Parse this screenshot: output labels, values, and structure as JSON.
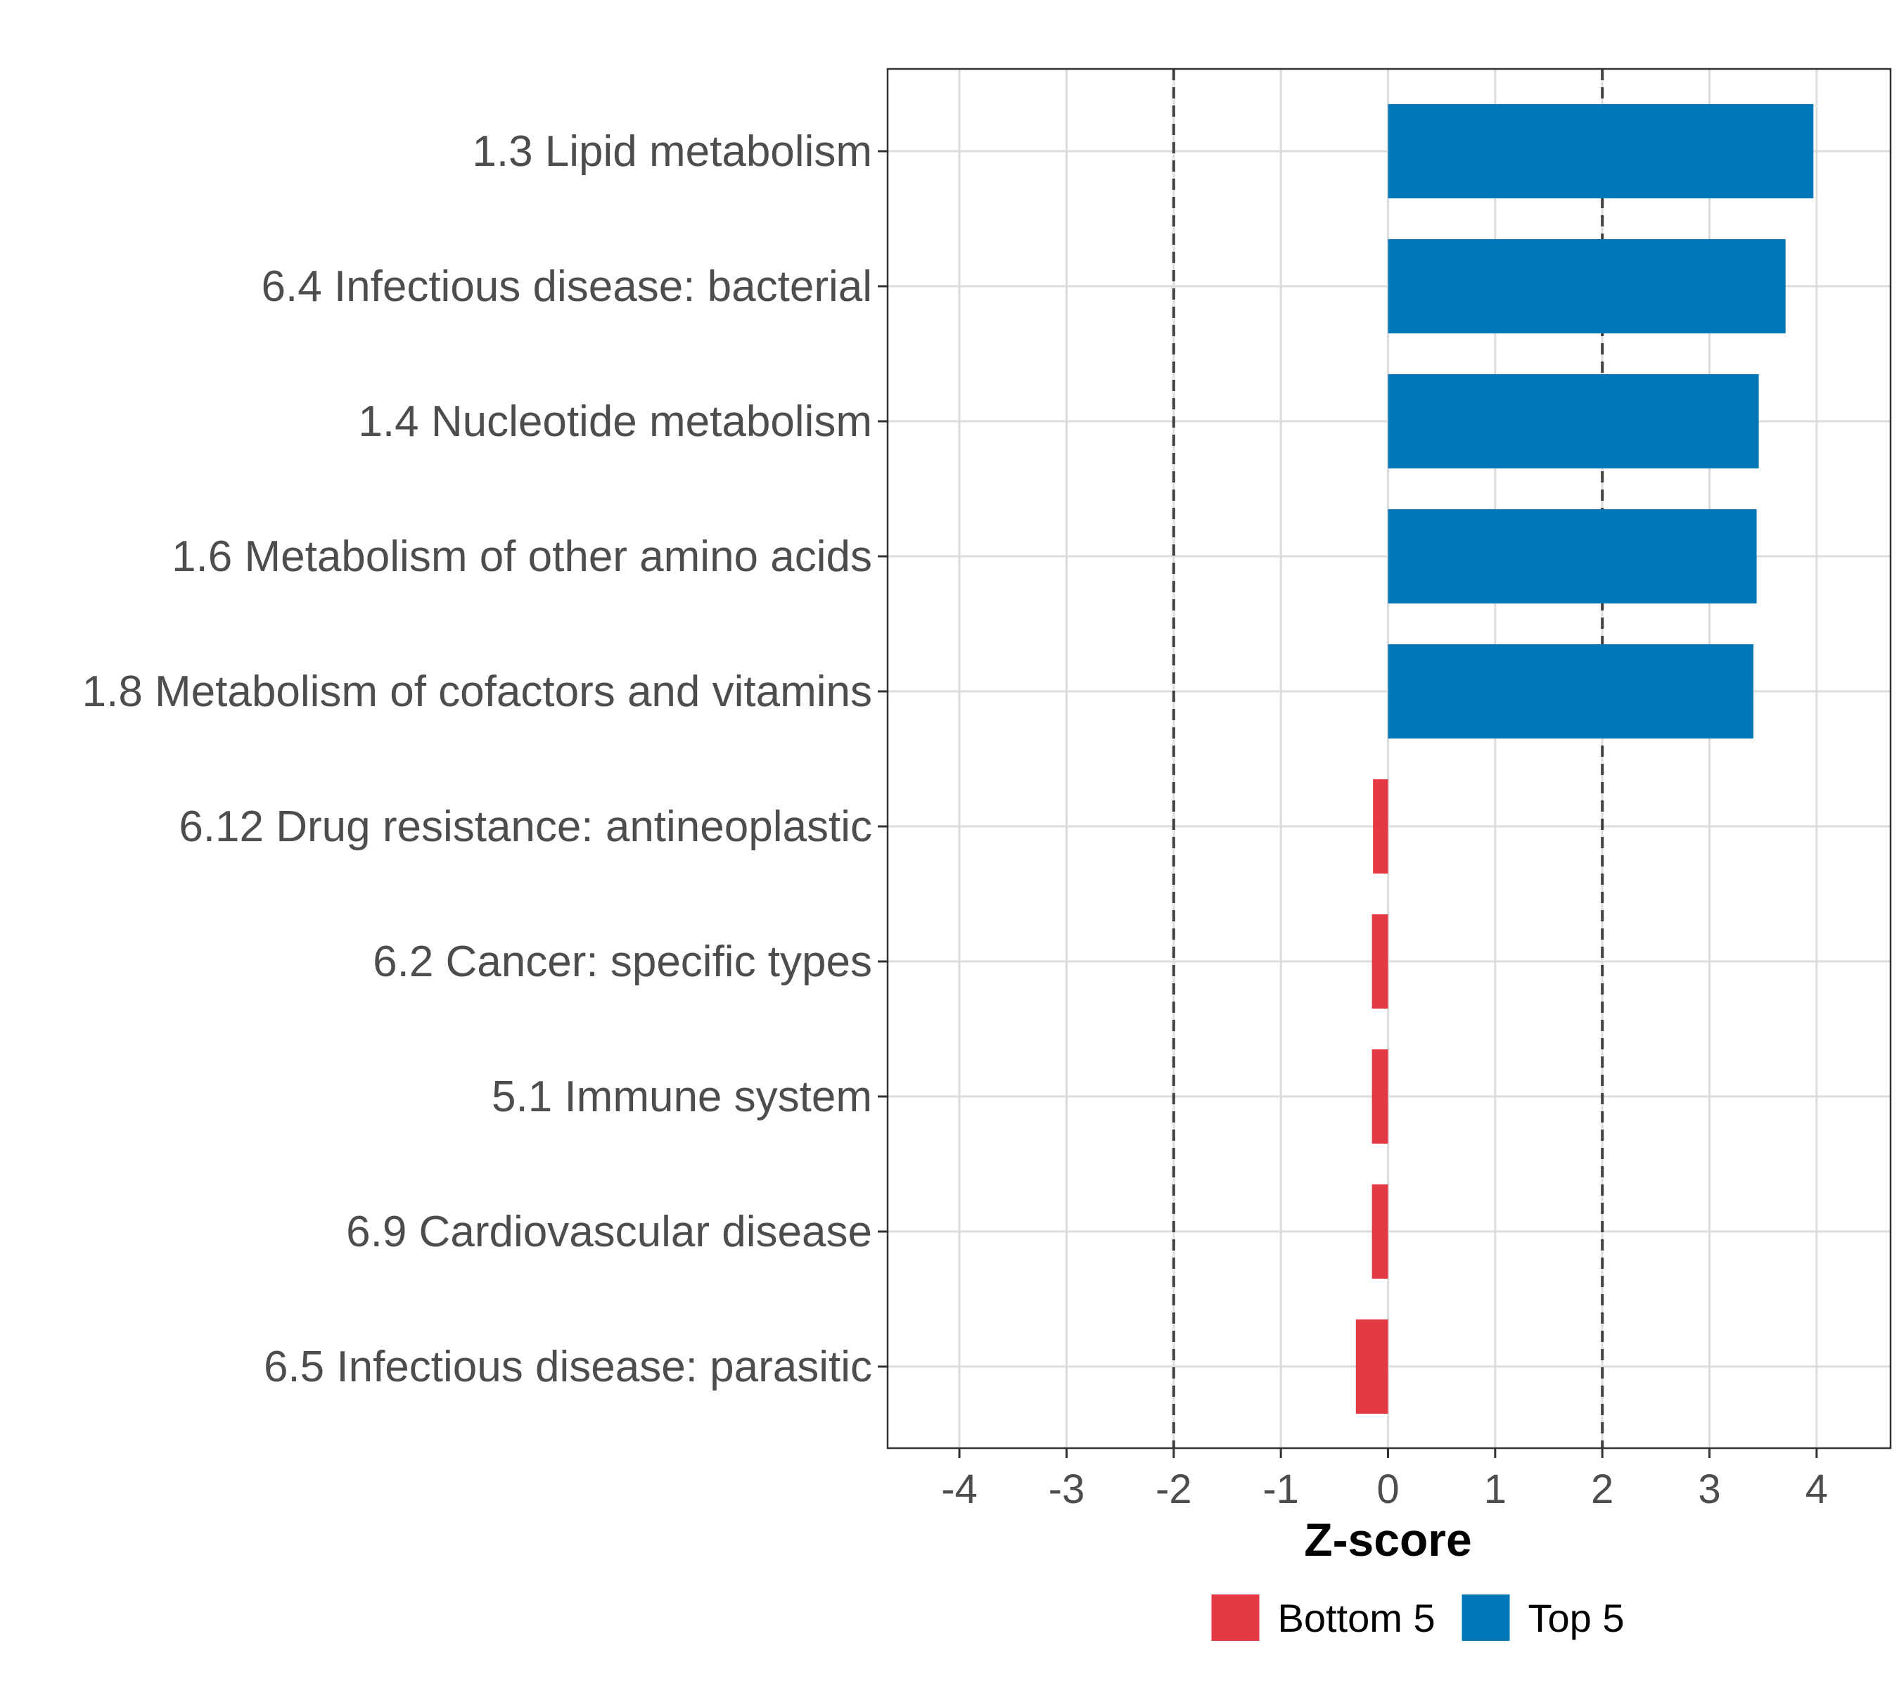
{
  "chart_data": {
    "type": "bar",
    "orientation": "horizontal",
    "categories": [
      "1.3 Lipid metabolism",
      "6.4 Infectious disease: bacterial",
      "1.4 Nucleotide metabolism",
      "1.6 Metabolism of other amino acids",
      "1.8 Metabolism of cofactors and vitamins",
      "6.12 Drug resistance: antineoplastic",
      "6.2 Cancer: specific types",
      "5.1 Immune system",
      "6.9 Cardiovascular disease",
      "6.5 Infectious disease: parasitic"
    ],
    "values": [
      3.97,
      3.71,
      3.46,
      3.44,
      3.41,
      -0.14,
      -0.15,
      -0.15,
      -0.15,
      -0.3
    ],
    "groups": [
      "Top 5",
      "Top 5",
      "Top 5",
      "Top 5",
      "Top 5",
      "Bottom 5",
      "Bottom 5",
      "Bottom 5",
      "Bottom 5",
      "Bottom 5"
    ],
    "xlabel": "Z-score",
    "ylabel": "",
    "xlim": [
      -4.67,
      4.69
    ],
    "xticks": [
      -4,
      -3,
      -2,
      -1,
      0,
      1,
      2,
      3,
      4
    ],
    "xtick_labels": [
      "-4",
      "-3",
      "-2",
      "-1",
      "0",
      "1",
      "2",
      "3",
      "4"
    ],
    "reference_lines": [
      -2,
      2
    ],
    "grid": true,
    "legend": {
      "position": "bottom",
      "entries": [
        {
          "label": "Bottom 5",
          "color": "#E63946"
        },
        {
          "label": "Top 5",
          "color": "#0077B6"
        }
      ]
    }
  }
}
